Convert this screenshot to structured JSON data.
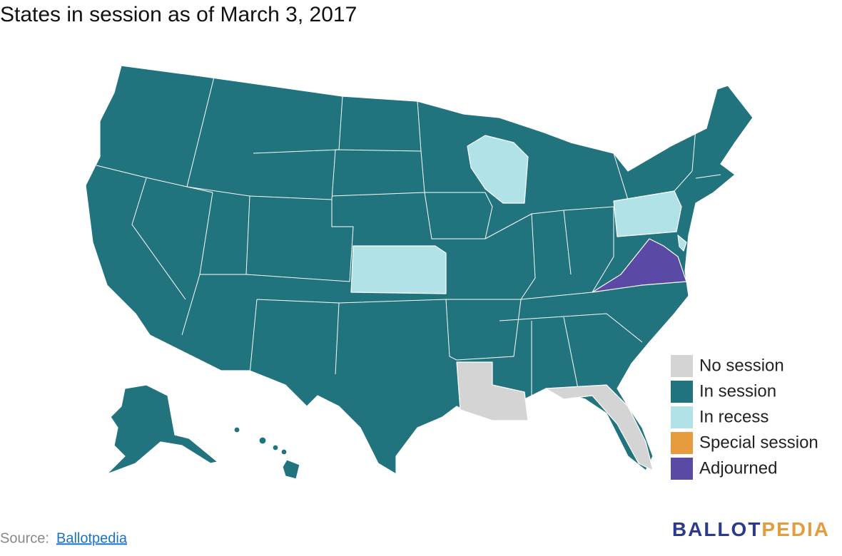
{
  "header": {
    "title": "States in session as of March 3, 2017"
  },
  "legend": {
    "items": [
      {
        "label": "No session",
        "color": "#d4d4d4"
      },
      {
        "label": "In session",
        "color": "#21737d"
      },
      {
        "label": "In recess",
        "color": "#b0e2e8"
      },
      {
        "label": "Special session",
        "color": "#e69c3c"
      },
      {
        "label": "Adjourned",
        "color": "#5a4aa6"
      }
    ]
  },
  "footer": {
    "source_prefix": "Source:",
    "source_link": "Ballotpedia",
    "logo": [
      {
        "text": "BALLOT",
        "color": "#2b3a8c"
      },
      {
        "text": "PEDIA",
        "color": "#e69c3c"
      }
    ]
  }
}
